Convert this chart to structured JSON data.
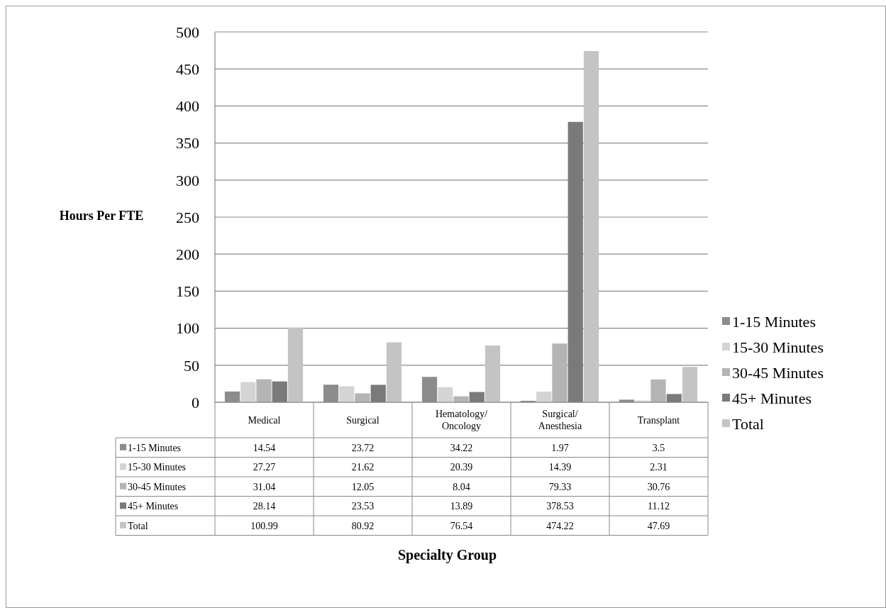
{
  "chart_data": {
    "type": "bar",
    "annotations": [
      "Specialty Group"
    ],
    "ylabel": "Hours Per FTE",
    "categories": [
      "Medical",
      "Surgical",
      "Hematology/Oncology",
      "Surgical/Anesthesia",
      "Transplant"
    ],
    "series": [
      {
        "name": "1-15 Minutes",
        "color": "#8c8c8c",
        "values": [
          14.54,
          23.72,
          34.22,
          1.97,
          3.5
        ]
      },
      {
        "name": "15-30 Minutes",
        "color": "#d4d4d4",
        "values": [
          27.27,
          21.62,
          20.39,
          14.39,
          2.31
        ]
      },
      {
        "name": "30-45 Minutes",
        "color": "#b4b4b4",
        "values": [
          31.04,
          12.05,
          8.04,
          79.33,
          30.76
        ]
      },
      {
        "name": "45+ Minutes",
        "color": "#7a7a7a",
        "values": [
          28.14,
          23.53,
          13.89,
          378.53,
          11.12
        ]
      },
      {
        "name": "Total",
        "color": "#c4c4c4",
        "values": [
          100.99,
          80.92,
          76.54,
          474.22,
          47.69
        ]
      }
    ],
    "ylim": [
      0,
      500
    ],
    "yticks": [
      0,
      50,
      100,
      150,
      200,
      250,
      300,
      350,
      400,
      450,
      500
    ],
    "grid": "y",
    "legend": "right",
    "data_labels": true
  }
}
